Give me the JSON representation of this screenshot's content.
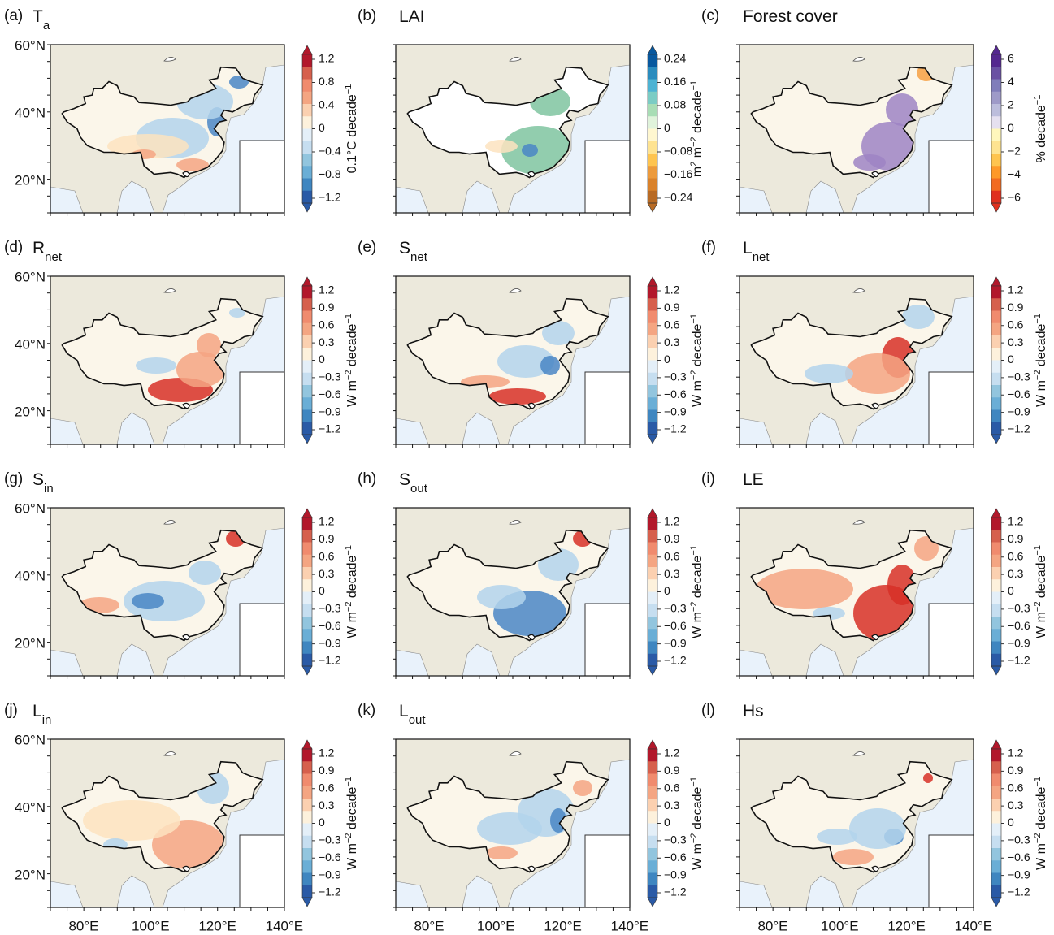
{
  "lat_labels": [
    "60°N",
    "40°N",
    "20°N"
  ],
  "lon_labels": [
    "80°E",
    "100°E",
    "120°E",
    "140°E"
  ],
  "palettes": {
    "rdbu": [
      "#b2182b",
      "#d6604d",
      "#f08b6e",
      "#f4a582",
      "#fbd0b0",
      "#fdf1dc",
      "#e4eff8",
      "#c6def0",
      "#92c5de",
      "#6aaed6",
      "#3f86c0",
      "#2a5aa6"
    ],
    "brbg": [
      "#08589e",
      "#2b8cbe",
      "#4eb3d3",
      "#7bccc4",
      "#a8ddb5",
      "#e0f3db",
      "#fff7d0",
      "#fee391",
      "#fec44f",
      "#ec9a3c",
      "#d9822b",
      "#b86b25"
    ],
    "purple": [
      "#54278f",
      "#6a51a3",
      "#807dba",
      "#9e9ac8",
      "#bcbddc",
      "#e5e0f0",
      "#fff7bc",
      "#fee391",
      "#fec44f",
      "#fe9929",
      "#f26b21",
      "#e0301e"
    ]
  },
  "panels": [
    {
      "label": "(a)",
      "title": {
        "main": "T",
        "sub": "a"
      },
      "palette": "rdbu",
      "ticks": [
        "1.2",
        "0.8",
        "0.4",
        "0",
        "−0.4",
        "−0.8",
        "−1.2"
      ],
      "unit": [
        "0.1°C decade",
        "−1"
      ]
    },
    {
      "label": "(b)",
      "title": {
        "main": "LAI"
      },
      "palette": "brbg",
      "ticks": [
        "0.24",
        "0.16",
        "0.08",
        "0",
        "−0.08",
        "−0.16",
        "−0.24"
      ],
      "unit": [
        "m",
        "2",
        " m",
        "−2",
        " decade",
        "−1"
      ]
    },
    {
      "label": "(c)",
      "title": {
        "main": "Forest cover"
      },
      "palette": "purple",
      "ticks": [
        "6",
        "4",
        "2",
        "0",
        "−2",
        "−4",
        "−6"
      ],
      "unit": [
        "% decade",
        "−1"
      ]
    },
    {
      "label": "(d)",
      "title": {
        "main": "R",
        "sub": "net"
      },
      "palette": "rdbu",
      "ticks": [
        "1.2",
        "0.9",
        "0.6",
        "0.3",
        "0",
        "−0.3",
        "−0.6",
        "−0.9",
        "−1.2"
      ],
      "unit": [
        "W m",
        "−2",
        " decade",
        "−1"
      ]
    },
    {
      "label": "(e)",
      "title": {
        "main": "S",
        "sub": "net"
      },
      "palette": "rdbu",
      "ticks": [
        "1.2",
        "0.9",
        "0.6",
        "0.3",
        "0",
        "−0.3",
        "−0.6",
        "−0.9",
        "−1.2"
      ],
      "unit": [
        "W m",
        "−2",
        " decade",
        "−1"
      ]
    },
    {
      "label": "(f)",
      "title": {
        "main": "L",
        "sub": "net"
      },
      "palette": "rdbu",
      "ticks": [
        "1.2",
        "0.9",
        "0.6",
        "0.3",
        "0",
        "−0.3",
        "−0.6",
        "−0.9",
        "−1.2"
      ],
      "unit": [
        "W m",
        "−2",
        " decade",
        "−1"
      ]
    },
    {
      "label": "(g)",
      "title": {
        "main": "S",
        "sub": "in"
      },
      "palette": "rdbu",
      "ticks": [
        "1.2",
        "0.9",
        "0.6",
        "0.3",
        "0",
        "−0.3",
        "−0.6",
        "−0.9",
        "−1.2"
      ],
      "unit": [
        "W m",
        "−2",
        " decade",
        "−1"
      ]
    },
    {
      "label": "(h)",
      "title": {
        "main": "S",
        "sub": "out"
      },
      "palette": "rdbu",
      "ticks": [
        "1.2",
        "0.9",
        "0.6",
        "0.3",
        "0",
        "−0.3",
        "−0.6",
        "−0.9",
        "−1.2"
      ],
      "unit": [
        "W m",
        "−2",
        " decade",
        "−1"
      ]
    },
    {
      "label": "(i)",
      "title": {
        "main": "LE"
      },
      "palette": "rdbu",
      "ticks": [
        "1.2",
        "0.9",
        "0.6",
        "0.3",
        "0",
        "−0.3",
        "−0.6",
        "−0.9",
        "−1.2"
      ],
      "unit": [
        "W m",
        "−2",
        " decade",
        "−1"
      ]
    },
    {
      "label": "(j)",
      "title": {
        "main": "L",
        "sub": "in"
      },
      "palette": "rdbu",
      "ticks": [
        "1.2",
        "0.9",
        "0.6",
        "0.3",
        "0",
        "−0.3",
        "−0.6",
        "−0.9",
        "−1.2"
      ],
      "unit": [
        "W m",
        "−2",
        " decade",
        "−1"
      ]
    },
    {
      "label": "(k)",
      "title": {
        "main": "L",
        "sub": "out"
      },
      "palette": "rdbu",
      "ticks": [
        "1.2",
        "0.9",
        "0.6",
        "0.3",
        "0",
        "−0.3",
        "−0.6",
        "−0.9",
        "−1.2"
      ],
      "unit": [
        "W m",
        "−2",
        " decade",
        "−1"
      ]
    },
    {
      "label": "(l)",
      "title": {
        "main": "Hs"
      },
      "palette": "rdbu",
      "ticks": [
        "1.2",
        "0.9",
        "0.6",
        "0.3",
        "0",
        "−0.3",
        "−0.6",
        "−0.9",
        "−1.2"
      ],
      "unit": [
        "W m",
        "−2",
        " decade",
        "−1"
      ]
    }
  ]
}
